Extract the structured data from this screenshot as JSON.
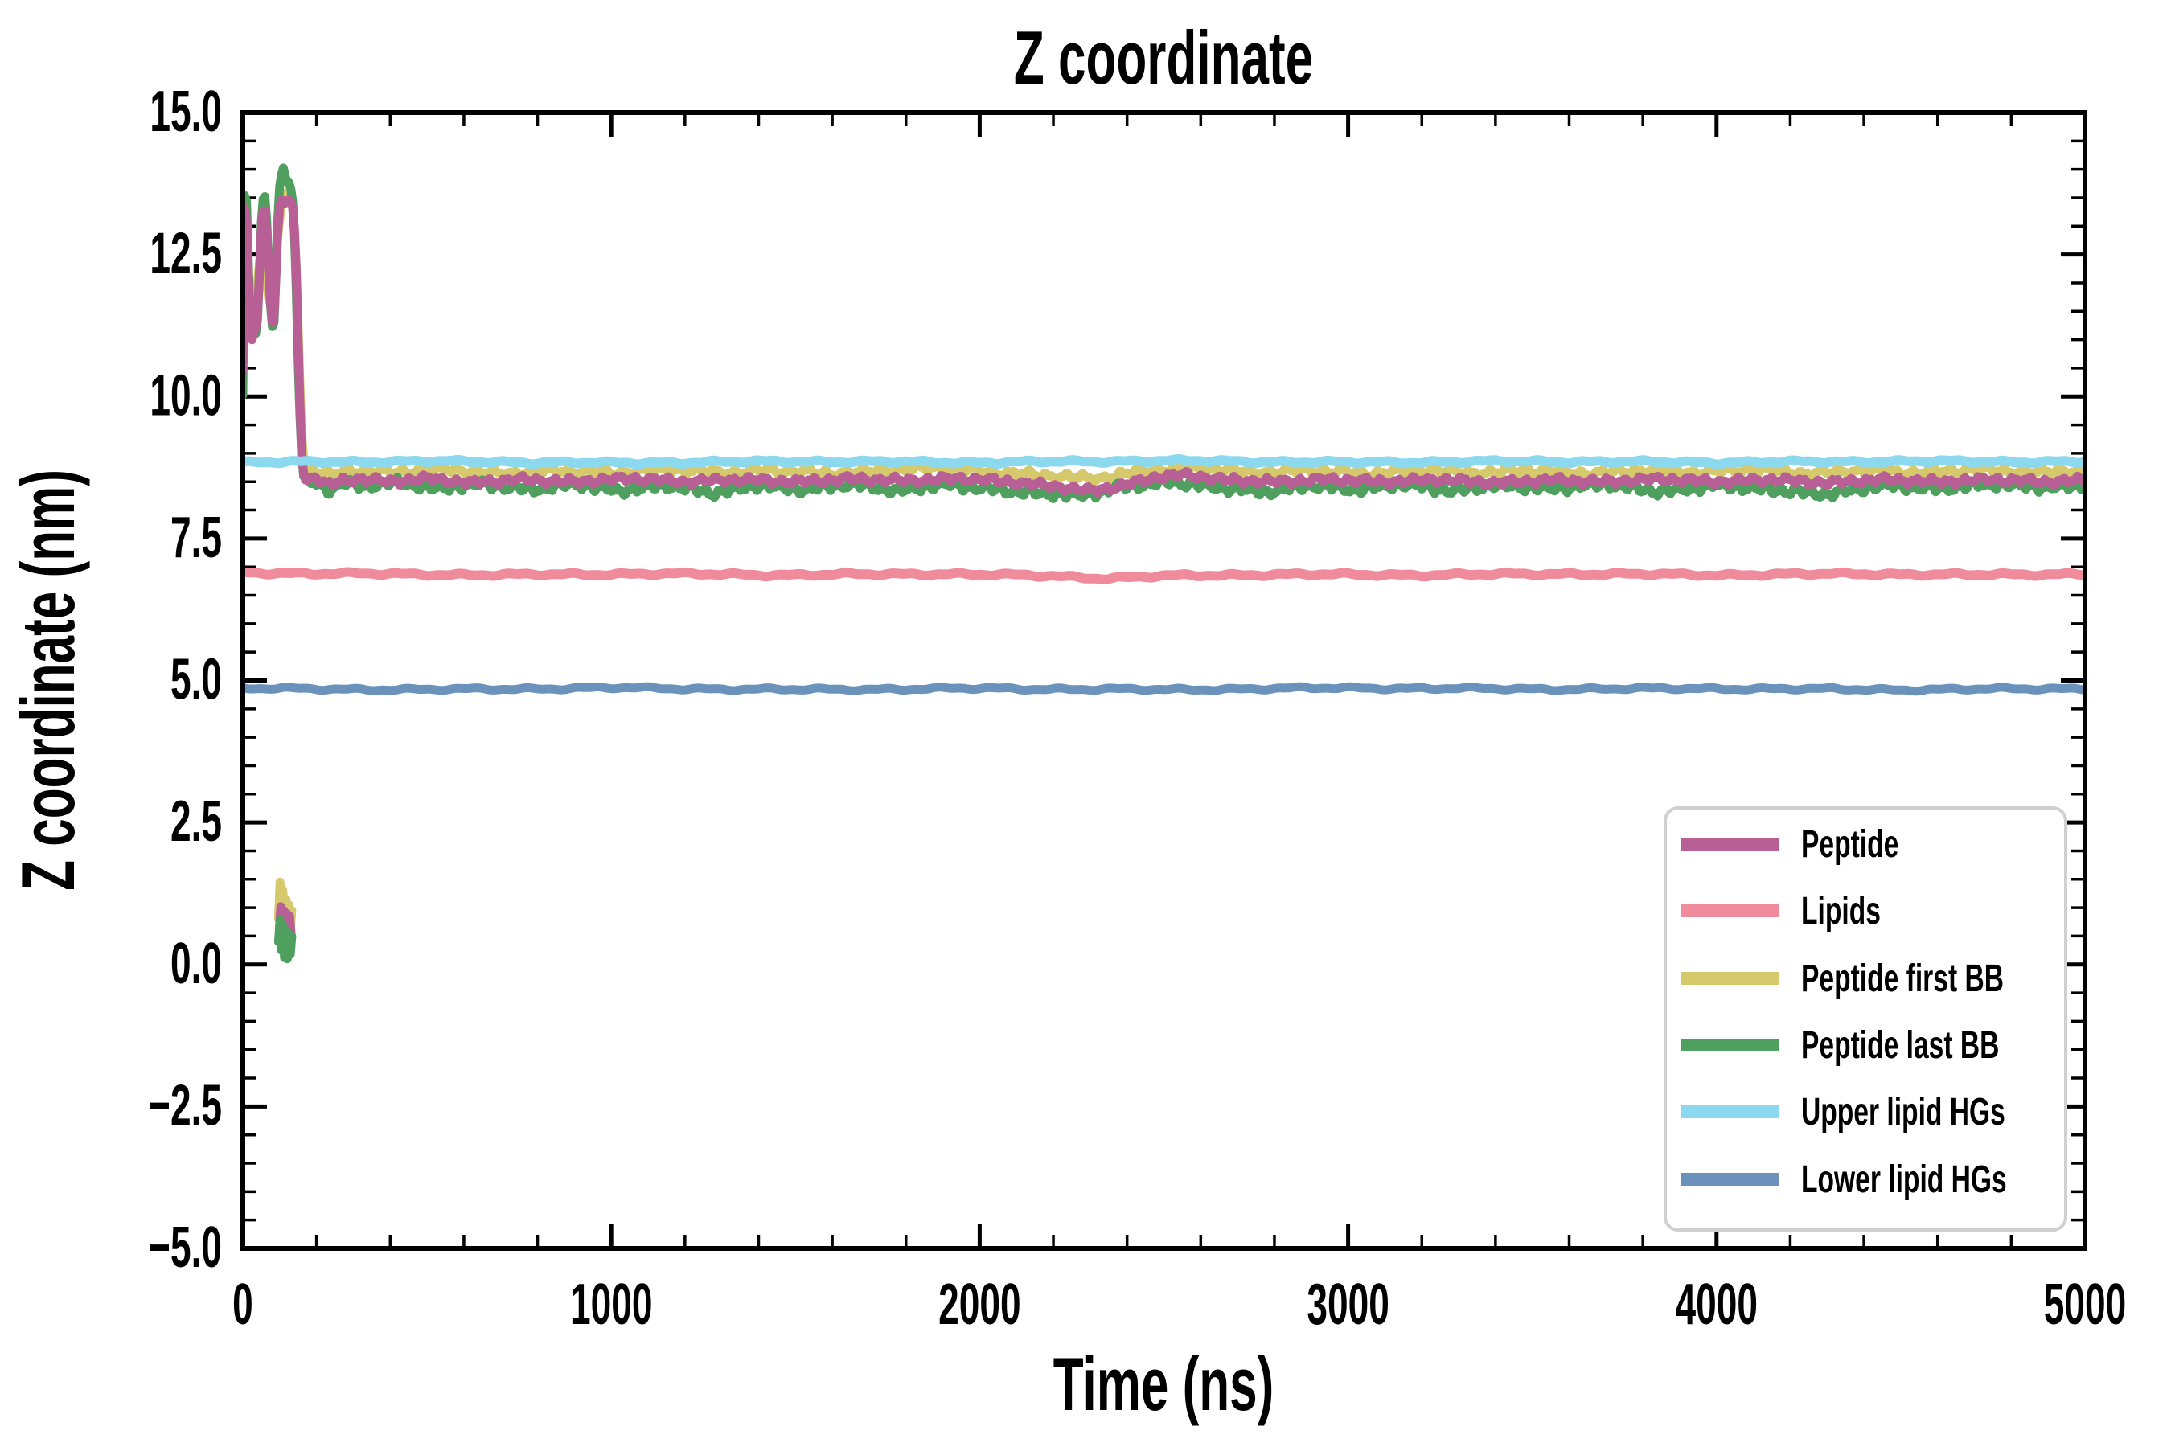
{
  "chart_data": {
    "type": "line",
    "title": "Z coordinate",
    "xlabel": "Time (ns)",
    "ylabel": "Z coordinate (nm)",
    "xlim": [
      0,
      5000
    ],
    "ylim": [
      -5.0,
      15.0
    ],
    "grid": false,
    "x_major_ticks": [
      0,
      1000,
      2000,
      3000,
      4000,
      5000
    ],
    "x_tick_labels": [
      "0",
      "1000",
      "2000",
      "3000",
      "4000",
      "5000"
    ],
    "x_minor_step": 200,
    "y_major_ticks": [
      -5.0,
      -2.5,
      0.0,
      2.5,
      5.0,
      7.5,
      10.0,
      12.5,
      15.0
    ],
    "y_tick_labels": [
      "−5.0",
      "−2.5",
      "0.0",
      "2.5",
      "5.0",
      "7.5",
      "10.0",
      "12.5",
      "15.0"
    ],
    "y_minor_step": 0.5,
    "tick_direction": "in",
    "legend": {
      "position": "lower right",
      "entries": [
        {
          "label": "Peptide",
          "color": "#b85f95"
        },
        {
          "label": "Lipids",
          "color": "#ef8b9b"
        },
        {
          "label": "Peptide first BB",
          "color": "#d5c96b"
        },
        {
          "label": "Peptide last BB",
          "color": "#4fa05e"
        },
        {
          "label": "Upper lipid HGs",
          "color": "#8bd8ef"
        },
        {
          "label": "Lower lipid HGs",
          "color": "#6a92ba"
        }
      ]
    },
    "series": [
      {
        "name": "Peptide",
        "color": "#b85f95",
        "linewidth": 11,
        "noise_amp": 0.07,
        "noise_wavelength_ns": 44,
        "keypoints": [
          [
            0,
            10.4
          ],
          [
            4,
            13.2
          ],
          [
            8,
            13.45
          ],
          [
            14,
            12.3
          ],
          [
            20,
            11.2
          ],
          [
            26,
            11.0
          ],
          [
            32,
            11.3
          ],
          [
            38,
            11.15
          ],
          [
            44,
            12.0
          ],
          [
            50,
            12.9
          ],
          [
            56,
            13.3
          ],
          [
            62,
            13.25
          ],
          [
            68,
            12.6
          ],
          [
            74,
            11.75
          ],
          [
            80,
            11.35
          ],
          [
            86,
            11.45
          ],
          [
            92,
            12.4
          ],
          [
            98,
            13.3
          ],
          [
            106,
            13.45
          ],
          [
            114,
            13.4
          ],
          [
            122,
            13.5
          ],
          [
            130,
            13.4
          ],
          [
            138,
            13.25
          ],
          [
            146,
            12.0
          ],
          [
            153,
            10.3
          ],
          [
            160,
            8.95
          ],
          [
            167,
            8.6
          ],
          [
            178,
            8.52
          ],
          [
            195,
            8.6
          ],
          [
            215,
            8.5
          ],
          [
            240,
            8.44
          ],
          [
            270,
            8.52
          ],
          [
            320,
            8.55
          ],
          [
            400,
            8.5
          ],
          [
            500,
            8.56
          ],
          [
            620,
            8.48
          ],
          [
            750,
            8.54
          ],
          [
            900,
            8.5
          ],
          [
            1050,
            8.56
          ],
          [
            1200,
            8.5
          ],
          [
            1350,
            8.54
          ],
          [
            1500,
            8.5
          ],
          [
            1650,
            8.55
          ],
          [
            1800,
            8.52
          ],
          [
            1950,
            8.56
          ],
          [
            2080,
            8.5
          ],
          [
            2200,
            8.42
          ],
          [
            2300,
            8.34
          ],
          [
            2380,
            8.42
          ],
          [
            2480,
            8.58
          ],
          [
            2560,
            8.62
          ],
          [
            2650,
            8.54
          ],
          [
            2800,
            8.5
          ],
          [
            2950,
            8.54
          ],
          [
            3100,
            8.5
          ],
          [
            3250,
            8.54
          ],
          [
            3400,
            8.48
          ],
          [
            3550,
            8.53
          ],
          [
            3700,
            8.5
          ],
          [
            3850,
            8.55
          ],
          [
            4000,
            8.5
          ],
          [
            4150,
            8.54
          ],
          [
            4300,
            8.48
          ],
          [
            4450,
            8.54
          ],
          [
            4600,
            8.5
          ],
          [
            4750,
            8.54
          ],
          [
            4900,
            8.5
          ],
          [
            5000,
            8.53
          ]
        ]
      },
      {
        "name": "Lipids",
        "color": "#ef8b9b",
        "linewidth": 12,
        "noise_amp": 0.03,
        "noise_wavelength_ns": 150,
        "keypoints": [
          [
            0,
            6.9
          ],
          [
            300,
            6.88
          ],
          [
            700,
            6.86
          ],
          [
            1100,
            6.88
          ],
          [
            1500,
            6.86
          ],
          [
            1900,
            6.88
          ],
          [
            2200,
            6.84
          ],
          [
            2350,
            6.8
          ],
          [
            2500,
            6.84
          ],
          [
            2800,
            6.87
          ],
          [
            3200,
            6.86
          ],
          [
            3600,
            6.88
          ],
          [
            4000,
            6.86
          ],
          [
            4400,
            6.88
          ],
          [
            4700,
            6.86
          ],
          [
            5000,
            6.88
          ]
        ]
      },
      {
        "name": "Peptide first BB",
        "color": "#d5c96b",
        "linewidth": 11,
        "noise_amp": 0.08,
        "noise_wavelength_ns": 50,
        "keypoints": [
          [
            0,
            12.4
          ],
          [
            6,
            12.25
          ],
          [
            12,
            11.95
          ],
          [
            18,
            11.6
          ],
          [
            24,
            11.45
          ],
          [
            30,
            11.55
          ],
          [
            36,
            11.65
          ],
          [
            42,
            12.15
          ],
          [
            48,
            12.5
          ],
          [
            54,
            12.6
          ],
          [
            60,
            12.35
          ],
          [
            66,
            11.95
          ],
          [
            72,
            11.6
          ],
          [
            78,
            11.65
          ],
          [
            84,
            11.85
          ],
          [
            90,
            12.4
          ],
          [
            96,
            12.9
          ],
          [
            104,
            13.35
          ],
          [
            112,
            13.55
          ],
          [
            120,
            13.6
          ],
          [
            128,
            13.45
          ],
          [
            136,
            13.3
          ],
          [
            144,
            12.5
          ],
          [
            152,
            10.9
          ],
          [
            159,
            9.5
          ],
          [
            166,
            8.85
          ],
          [
            178,
            8.72
          ],
          [
            200,
            8.68
          ],
          [
            240,
            8.62
          ],
          [
            300,
            8.7
          ],
          [
            400,
            8.66
          ],
          [
            550,
            8.72
          ],
          [
            700,
            8.64
          ],
          [
            850,
            8.7
          ],
          [
            1000,
            8.65
          ],
          [
            1150,
            8.72
          ],
          [
            1300,
            8.66
          ],
          [
            1450,
            8.7
          ],
          [
            1600,
            8.64
          ],
          [
            1750,
            8.7
          ],
          [
            1900,
            8.75
          ],
          [
            2050,
            8.66
          ],
          [
            2200,
            8.6
          ],
          [
            2320,
            8.55
          ],
          [
            2450,
            8.7
          ],
          [
            2600,
            8.74
          ],
          [
            2750,
            8.66
          ],
          [
            2900,
            8.7
          ],
          [
            3050,
            8.64
          ],
          [
            3200,
            8.7
          ],
          [
            3350,
            8.65
          ],
          [
            3500,
            8.7
          ],
          [
            3650,
            8.64
          ],
          [
            3800,
            8.7
          ],
          [
            3950,
            8.66
          ],
          [
            4100,
            8.72
          ],
          [
            4250,
            8.64
          ],
          [
            4400,
            8.7
          ],
          [
            4550,
            8.65
          ],
          [
            4700,
            8.72
          ],
          [
            4850,
            8.66
          ],
          [
            5000,
            8.7
          ]
        ]
      },
      {
        "name": "Peptide last BB",
        "color": "#4fa05e",
        "linewidth": 11,
        "noise_amp": 0.09,
        "noise_wavelength_ns": 40,
        "keypoints": [
          [
            0,
            10.1
          ],
          [
            4,
            13.5
          ],
          [
            8,
            13.85
          ],
          [
            14,
            12.5
          ],
          [
            20,
            11.3
          ],
          [
            26,
            11.0
          ],
          [
            32,
            11.25
          ],
          [
            38,
            11.1
          ],
          [
            44,
            11.95
          ],
          [
            50,
            13.0
          ],
          [
            56,
            13.5
          ],
          [
            62,
            13.4
          ],
          [
            68,
            12.7
          ],
          [
            74,
            11.7
          ],
          [
            80,
            11.25
          ],
          [
            86,
            11.35
          ],
          [
            92,
            12.5
          ],
          [
            98,
            13.6
          ],
          [
            104,
            13.9
          ],
          [
            110,
            14.05
          ],
          [
            118,
            13.9
          ],
          [
            126,
            13.75
          ],
          [
            134,
            13.55
          ],
          [
            142,
            12.6
          ],
          [
            150,
            10.7
          ],
          [
            158,
            9.1
          ],
          [
            165,
            8.6
          ],
          [
            178,
            8.45
          ],
          [
            200,
            8.5
          ],
          [
            230,
            8.35
          ],
          [
            270,
            8.48
          ],
          [
            330,
            8.42
          ],
          [
            420,
            8.5
          ],
          [
            520,
            8.38
          ],
          [
            650,
            8.46
          ],
          [
            780,
            8.36
          ],
          [
            900,
            8.46
          ],
          [
            1020,
            8.34
          ],
          [
            1150,
            8.44
          ],
          [
            1280,
            8.3
          ],
          [
            1400,
            8.44
          ],
          [
            1520,
            8.36
          ],
          [
            1650,
            8.46
          ],
          [
            1780,
            8.34
          ],
          [
            1900,
            8.46
          ],
          [
            2020,
            8.38
          ],
          [
            2150,
            8.3
          ],
          [
            2280,
            8.26
          ],
          [
            2400,
            8.42
          ],
          [
            2520,
            8.5
          ],
          [
            2650,
            8.4
          ],
          [
            2780,
            8.32
          ],
          [
            2900,
            8.44
          ],
          [
            3020,
            8.36
          ],
          [
            3150,
            8.46
          ],
          [
            3280,
            8.34
          ],
          [
            3400,
            8.44
          ],
          [
            3550,
            8.38
          ],
          [
            3700,
            8.46
          ],
          [
            3850,
            8.32
          ],
          [
            4000,
            8.44
          ],
          [
            4150,
            8.36
          ],
          [
            4300,
            8.28
          ],
          [
            4450,
            8.44
          ],
          [
            4600,
            8.38
          ],
          [
            4750,
            8.46
          ],
          [
            4900,
            8.4
          ],
          [
            5000,
            8.44
          ]
        ]
      },
      {
        "name": "Upper lipid HGs",
        "color": "#8bd8ef",
        "linewidth": 12,
        "noise_amp": 0.03,
        "noise_wavelength_ns": 140,
        "keypoints": [
          [
            0,
            8.84
          ],
          [
            500,
            8.86
          ],
          [
            1000,
            8.83
          ],
          [
            1500,
            8.86
          ],
          [
            2000,
            8.84
          ],
          [
            2500,
            8.87
          ],
          [
            3000,
            8.84
          ],
          [
            3500,
            8.86
          ],
          [
            4000,
            8.84
          ],
          [
            4500,
            8.86
          ],
          [
            5000,
            8.85
          ]
        ]
      },
      {
        "name": "Lower lipid HGs",
        "color": "#6a92ba",
        "linewidth": 11,
        "noise_amp": 0.028,
        "noise_wavelength_ns": 160,
        "keypoints": [
          [
            0,
            4.86
          ],
          [
            500,
            4.84
          ],
          [
            1000,
            4.87
          ],
          [
            1500,
            4.84
          ],
          [
            2000,
            4.86
          ],
          [
            2500,
            4.84
          ],
          [
            3000,
            4.87
          ],
          [
            3500,
            4.85
          ],
          [
            4000,
            4.86
          ],
          [
            4500,
            4.84
          ],
          [
            5000,
            4.86
          ]
        ]
      }
    ],
    "wrap_segments": [
      {
        "series": "Peptide first BB",
        "color": "#d5c96b",
        "points": [
          [
            97,
            0.8
          ],
          [
            101,
            1.45
          ],
          [
            105,
            0.85
          ],
          [
            109,
            1.3
          ],
          [
            113,
            0.7
          ],
          [
            117,
            1.15
          ],
          [
            121,
            0.62
          ],
          [
            125,
            1.05
          ],
          [
            129,
            0.6
          ],
          [
            133,
            0.95
          ]
        ]
      },
      {
        "series": "Peptide",
        "color": "#b85f95",
        "points": [
          [
            99,
            0.6
          ],
          [
            103,
            1.02
          ],
          [
            107,
            0.55
          ],
          [
            111,
            0.95
          ],
          [
            115,
            0.5
          ],
          [
            119,
            0.9
          ],
          [
            123,
            0.5
          ],
          [
            127,
            0.85
          ],
          [
            131,
            0.55
          ]
        ]
      },
      {
        "series": "Peptide last BB",
        "color": "#4fa05e",
        "points": [
          [
            97,
            0.4
          ],
          [
            101,
            0.78
          ],
          [
            105,
            0.25
          ],
          [
            109,
            0.68
          ],
          [
            113,
            0.12
          ],
          [
            117,
            0.6
          ],
          [
            121,
            0.1
          ],
          [
            125,
            0.55
          ],
          [
            129,
            0.18
          ],
          [
            133,
            0.5
          ]
        ]
      }
    ]
  }
}
